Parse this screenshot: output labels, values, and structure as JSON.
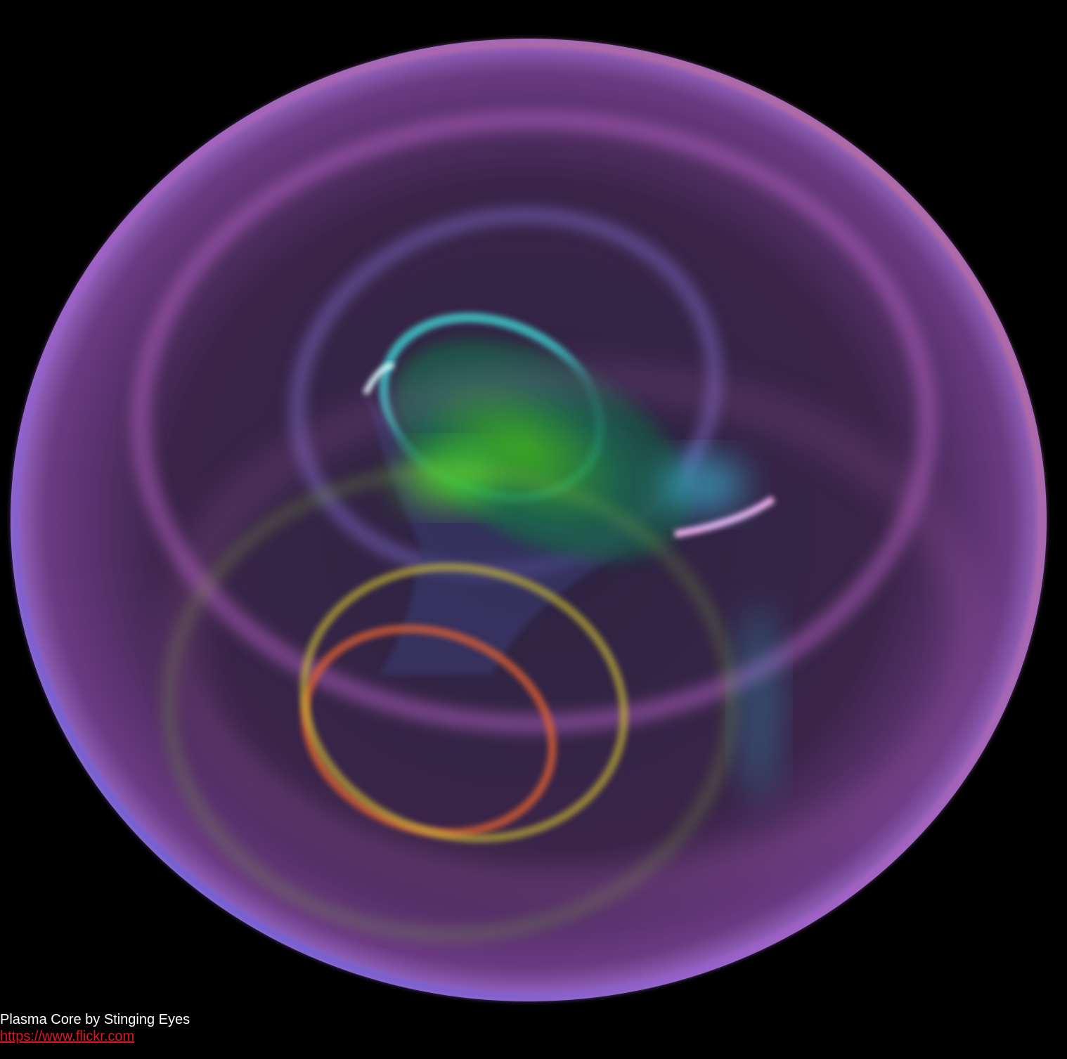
{
  "caption": {
    "title": "Plasma Core by Stinging Eyes",
    "link": "https://www.flickr.com"
  }
}
